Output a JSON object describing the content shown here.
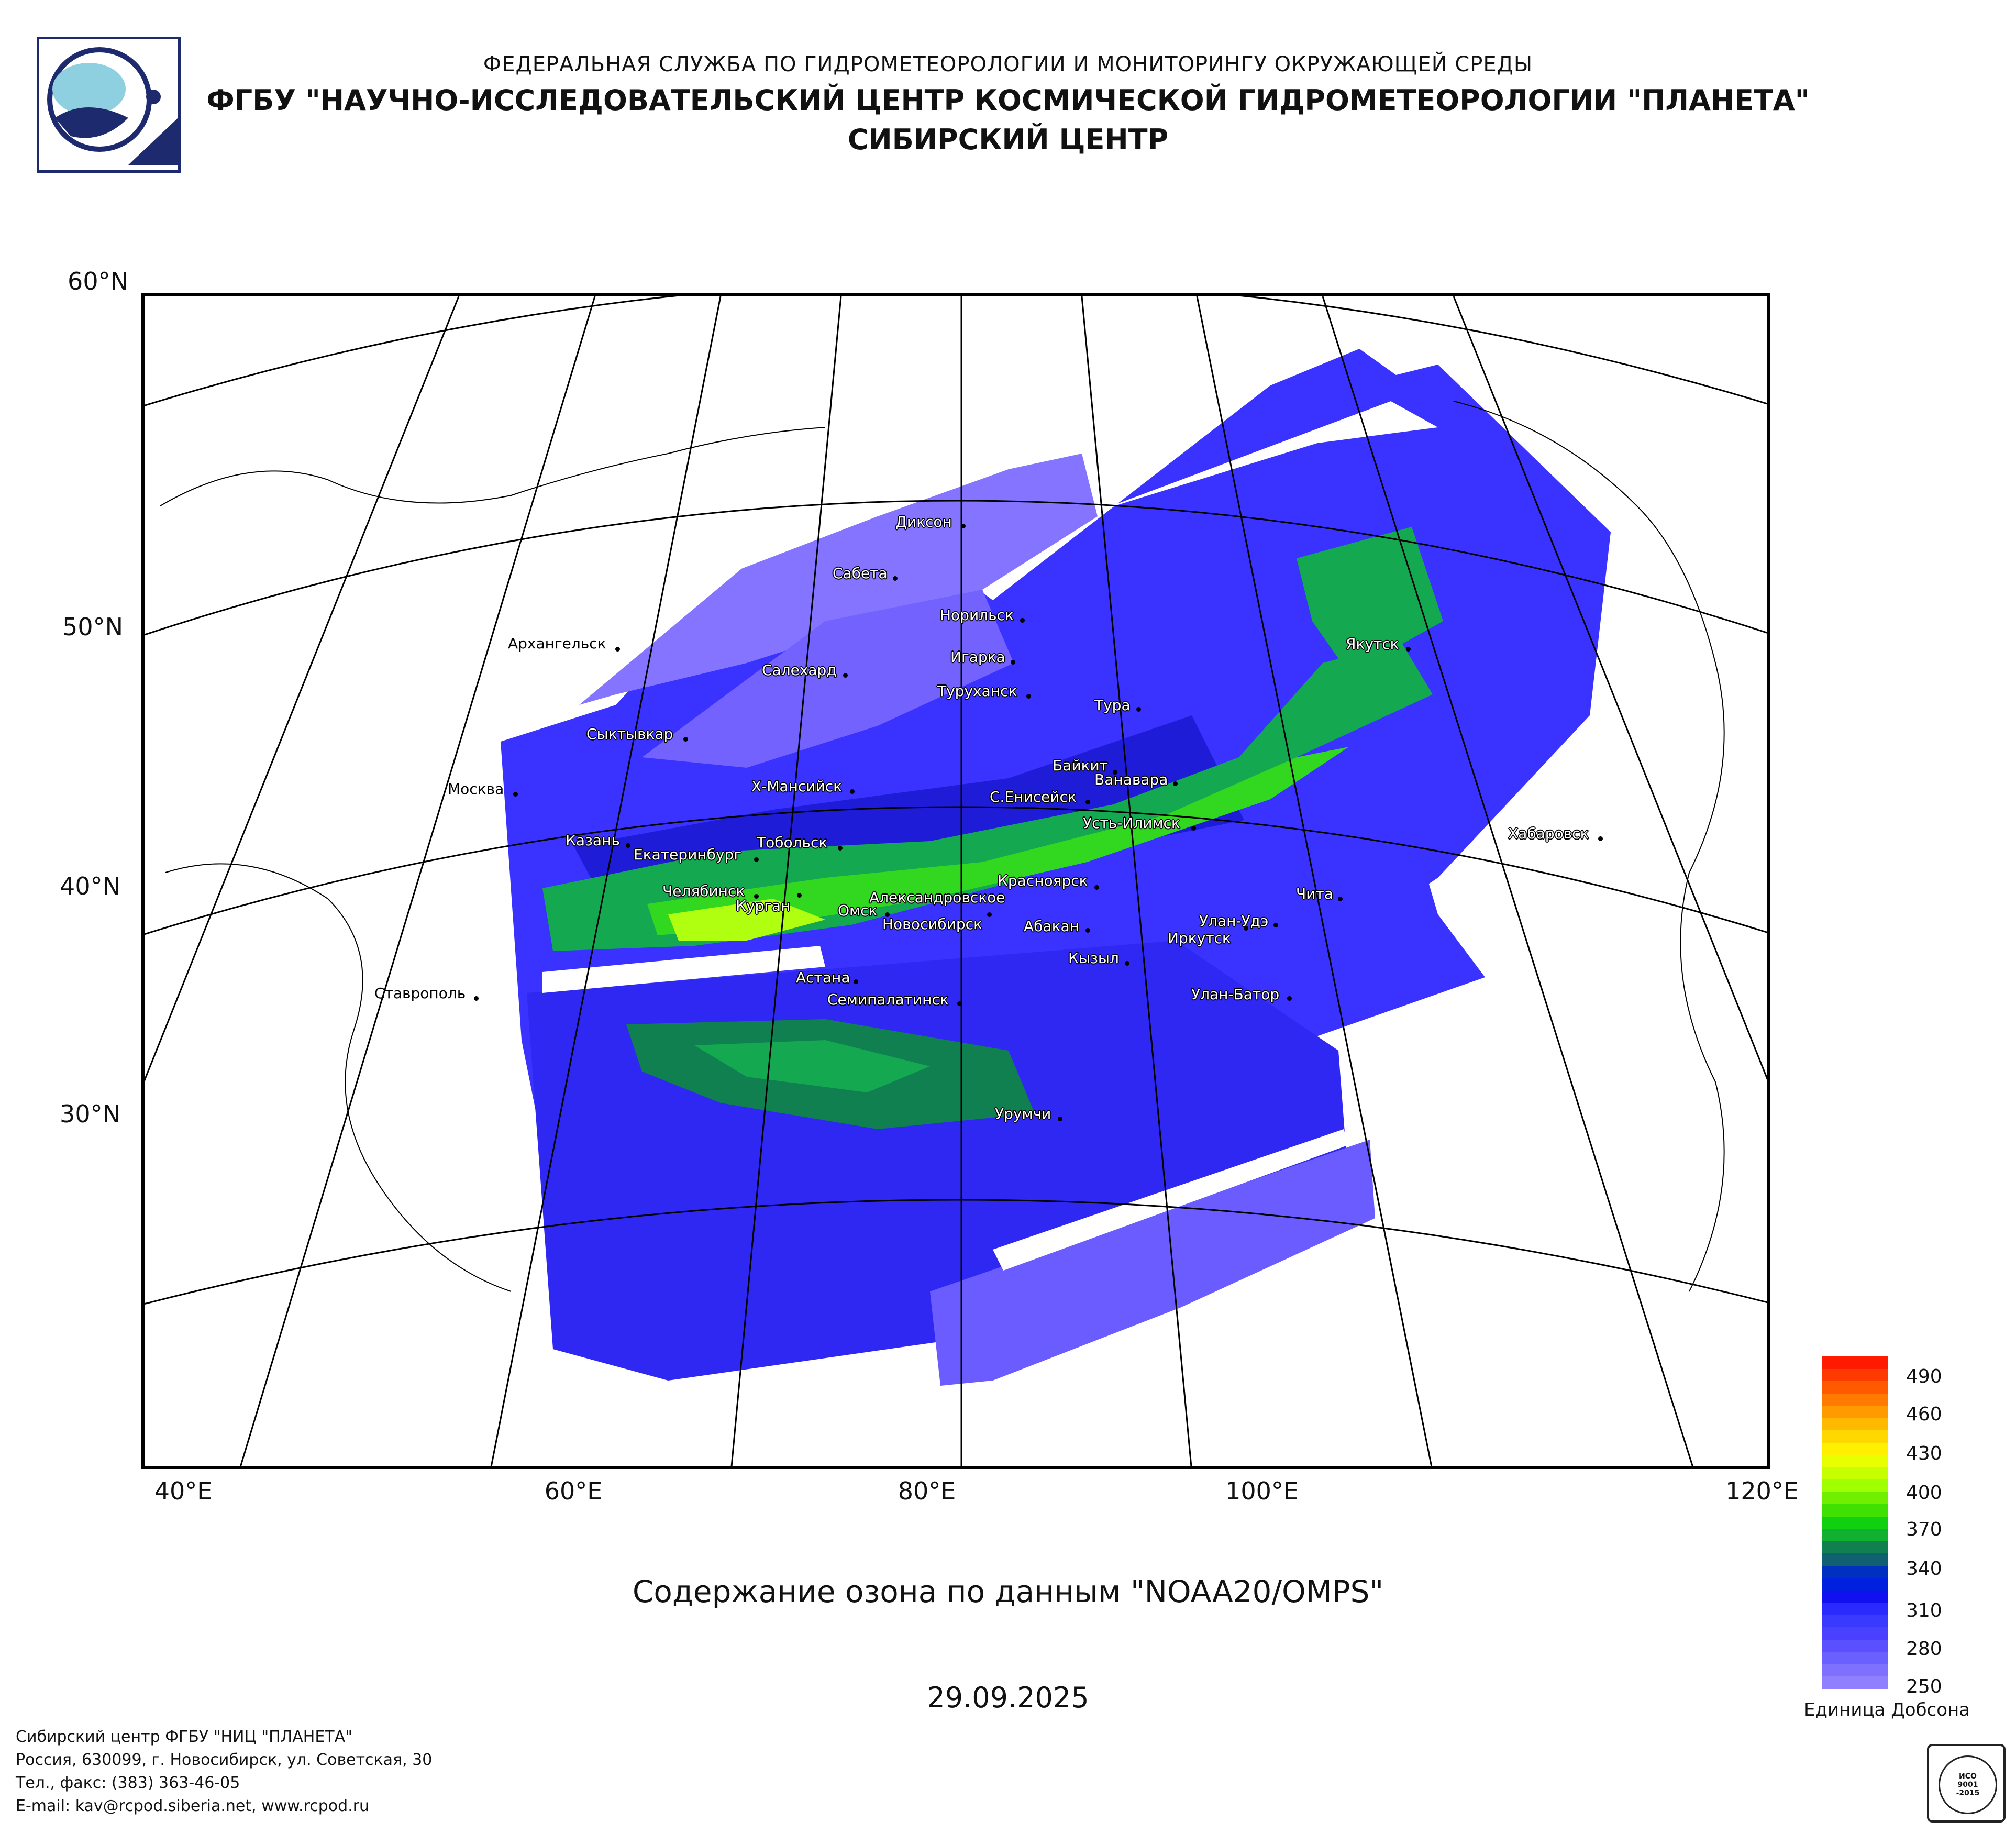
{
  "header": {
    "line1": "ФЕДЕРАЛЬНАЯ СЛУЖБА ПО ГИДРОМЕТЕОРОЛОГИИ И МОНИТОРИНГУ ОКРУЖАЮЩЕЙ СРЕДЫ",
    "line2": "ФГБУ \"НАУЧНО-ИССЛЕДОВАТЕЛЬСКИЙ ЦЕНТР КОСМИЧЕСКОЙ ГИДРОМЕТЕОРОЛОГИИ \"ПЛАНЕТА\"",
    "line3": "СИБИРСКИЙ ЦЕНТР"
  },
  "map": {
    "lat_labels": [
      "60°N",
      "50°N",
      "40°N",
      "30°N"
    ],
    "lon_labels": [
      "40°E",
      "60°E",
      "80°E",
      "100°E",
      "120°E"
    ],
    "cities": [
      "Диксон",
      "Сабета",
      "Норильск",
      "Архангельск",
      "Салехард",
      "Игарка",
      "Туруханск",
      "Тура",
      "Якутск",
      "Сыктывкар",
      "Байкит",
      "Ванавара",
      "Москва",
      "Х-Мансийск",
      "С.Енисейск",
      "Усть-Илимск",
      "Казань",
      "Тобольск",
      "Екатеринбург",
      "Хабаровск",
      "Челябинск",
      "Курган",
      "Александровское",
      "Красноярск",
      "Омск",
      "Новосибирск",
      "Чита",
      "Улан-Удэ",
      "Абакан",
      "Иркутск",
      "Кызыл",
      "Астана",
      "Ставрополь",
      "Семипалатинск",
      "Улан-Батор",
      "Урумчи"
    ]
  },
  "caption": "Содержание озона по данным \"NOAA20/OMPS\"",
  "date": "29.09.2025",
  "legend": {
    "unit": "Единица Добсона",
    "ticks": [
      "490",
      "460",
      "430",
      "400",
      "370",
      "340",
      "310",
      "280",
      "250"
    ],
    "colors": [
      "#ff1a00",
      "#ff3a00",
      "#ff5a00",
      "#ff7a00",
      "#ff9a00",
      "#ffba00",
      "#ffd800",
      "#fff000",
      "#e8ff00",
      "#c8ff00",
      "#a0ff00",
      "#70f000",
      "#40e000",
      "#10d010",
      "#10b030",
      "#108050",
      "#106070",
      "#0030c0",
      "#0020e0",
      "#1010f0",
      "#2a2aff",
      "#3a3aff",
      "#4a40ff",
      "#5a50ff",
      "#6a60ff",
      "#8070ff",
      "#9080ff"
    ]
  },
  "footer": {
    "line1": "Сибирский центр ФГБУ \"НИЦ \"ПЛАНЕТА\"",
    "line2": "Россия, 630099, г. Новосибирск, ул. Советская, 30",
    "line3": "Тел., факс: (383) 363-46-05",
    "line4": "E-mail: kav@rcpod.siberia.net, www.rcpod.ru"
  },
  "iso_badge": {
    "top": "ДОБРОСОВЕСТНЫЙ",
    "mid1": "ИСО",
    "mid2": "9001",
    "mid3": "-2015",
    "bottom": "ПОСТАВЩИК"
  }
}
